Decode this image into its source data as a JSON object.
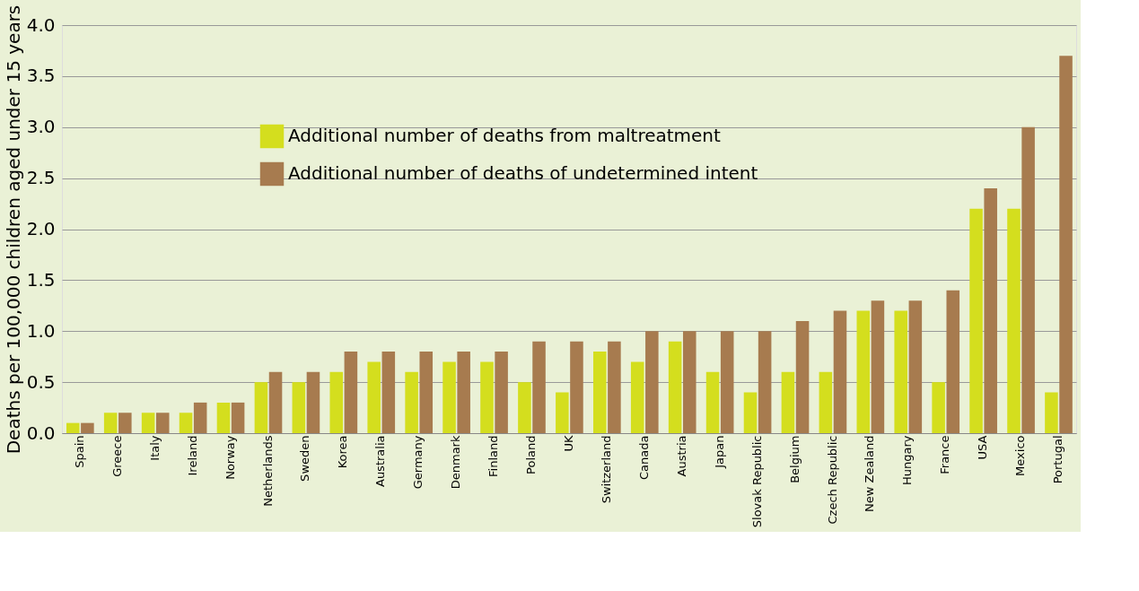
{
  "chart_data": {
    "type": "bar",
    "ylabel": "Deaths per 100,000 children aged under 15 years",
    "categories": [
      "Spain",
      "Greece",
      "Italy",
      "Ireland",
      "Norway",
      "Netherlands",
      "Sweden",
      "Korea",
      "Australia",
      "Germany",
      "Denmark",
      "Finland",
      "Poland",
      "UK",
      "Switzerland",
      "Canada",
      "Austria",
      "Japan",
      "Slovak Republic",
      "Belgium",
      "Czech Republic",
      "New Zealand",
      "Hungary",
      "France",
      "USA",
      "Mexico",
      "Portugal"
    ],
    "series": [
      {
        "name": "Additional number of deaths from maltreatment",
        "color": "#d4de1e",
        "values": [
          0.1,
          0.2,
          0.2,
          0.2,
          0.3,
          0.5,
          0.5,
          0.6,
          0.7,
          0.6,
          0.7,
          0.7,
          0.5,
          0.4,
          0.8,
          0.7,
          0.9,
          0.6,
          0.4,
          0.6,
          0.6,
          1.2,
          1.2,
          0.5,
          2.2,
          2.2,
          0.4
        ]
      },
      {
        "name": "Additional number of deaths of undetermined intent",
        "color": "#a77b4f",
        "values": [
          0.1,
          0.2,
          0.2,
          0.3,
          0.3,
          0.6,
          0.6,
          0.8,
          0.8,
          0.8,
          0.8,
          0.8,
          0.9,
          0.9,
          0.9,
          1.0,
          1.0,
          1.0,
          1.0,
          1.1,
          1.2,
          1.3,
          1.3,
          1.4,
          2.4,
          3.0,
          3.7
        ]
      }
    ],
    "ylim": [
      0,
      4
    ],
    "yticks": [
      {
        "value": 0,
        "label": "0.0"
      },
      {
        "value": 0.5,
        "label": "0.5"
      },
      {
        "value": 1,
        "label": "1.0"
      },
      {
        "value": 1.5,
        "label": "1.5"
      },
      {
        "value": 2,
        "label": "2.0"
      },
      {
        "value": 2.5,
        "label": "2.5"
      },
      {
        "value": 3,
        "label": "3.0"
      },
      {
        "value": 3.5,
        "label": "3.5"
      },
      {
        "value": 4,
        "label": "4.0"
      }
    ],
    "grid": "y",
    "legend": "top left"
  }
}
